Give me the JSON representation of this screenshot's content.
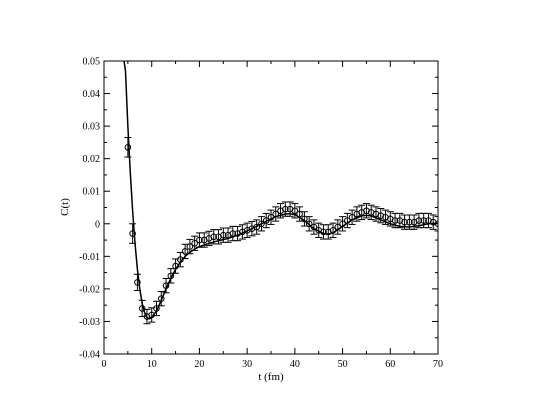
{
  "chart_data": {
    "type": "scatter",
    "title": "",
    "xlabel": "t (fm)",
    "ylabel": "C(t)",
    "xlim": [
      0,
      70
    ],
    "ylim": [
      -0.04,
      0.05
    ],
    "x_ticks": [
      0,
      10,
      20,
      30,
      40,
      50,
      60,
      70
    ],
    "x_tick_labels": [
      "0",
      "10",
      "20",
      "30",
      "40",
      "50",
      "60",
      "70"
    ],
    "y_ticks": [
      -0.04,
      -0.03,
      -0.02,
      -0.01,
      0,
      0.01,
      0.02,
      0.03,
      0.04,
      0.05
    ],
    "y_tick_labels": [
      "-0.04",
      "-0.03",
      "-0.02",
      "-0.01",
      "0",
      "0.01",
      "0.02",
      "0.03",
      "0.04",
      "0.05"
    ],
    "grid": false,
    "legend": "none",
    "colors": {
      "marker": "#000000",
      "error_bar": "#000000",
      "fit_line": "#000000"
    },
    "points": [
      {
        "x": 5.0,
        "y": 0.0235,
        "err": 0.003
      },
      {
        "x": 6.0,
        "y": -0.003,
        "err": 0.003
      },
      {
        "x": 7.0,
        "y": -0.018,
        "err": 0.0025
      },
      {
        "x": 8.0,
        "y": -0.026,
        "err": 0.0025
      },
      {
        "x": 9.0,
        "y": -0.0285,
        "err": 0.0022
      },
      {
        "x": 10.0,
        "y": -0.028,
        "err": 0.0022
      },
      {
        "x": 11.0,
        "y": -0.026,
        "err": 0.0022
      },
      {
        "x": 12.0,
        "y": -0.023,
        "err": 0.0022
      },
      {
        "x": 13.0,
        "y": -0.019,
        "err": 0.0022
      },
      {
        "x": 14.0,
        "y": -0.016,
        "err": 0.0022
      },
      {
        "x": 15.0,
        "y": -0.013,
        "err": 0.0022
      },
      {
        "x": 16.0,
        "y": -0.011,
        "err": 0.0022
      },
      {
        "x": 17.0,
        "y": -0.0085,
        "err": 0.0022
      },
      {
        "x": 18.0,
        "y": -0.007,
        "err": 0.0022
      },
      {
        "x": 19.0,
        "y": -0.006,
        "err": 0.0022
      },
      {
        "x": 20.0,
        "y": -0.005,
        "err": 0.0022
      },
      {
        "x": 21.0,
        "y": -0.005,
        "err": 0.0022
      },
      {
        "x": 22.0,
        "y": -0.0045,
        "err": 0.0022
      },
      {
        "x": 23.0,
        "y": -0.004,
        "err": 0.0022
      },
      {
        "x": 24.0,
        "y": -0.004,
        "err": 0.0022
      },
      {
        "x": 25.0,
        "y": -0.0035,
        "err": 0.0022
      },
      {
        "x": 26.0,
        "y": -0.0035,
        "err": 0.0022
      },
      {
        "x": 27.0,
        "y": -0.003,
        "err": 0.0022
      },
      {
        "x": 28.0,
        "y": -0.003,
        "err": 0.0022
      },
      {
        "x": 29.0,
        "y": -0.0025,
        "err": 0.0022
      },
      {
        "x": 30.0,
        "y": -0.002,
        "err": 0.0022
      },
      {
        "x": 31.0,
        "y": -0.0015,
        "err": 0.0022
      },
      {
        "x": 32.0,
        "y": -0.001,
        "err": 0.0022
      },
      {
        "x": 33.0,
        "y": 0.0,
        "err": 0.0022
      },
      {
        "x": 34.0,
        "y": 0.001,
        "err": 0.0022
      },
      {
        "x": 35.0,
        "y": 0.002,
        "err": 0.0022
      },
      {
        "x": 36.0,
        "y": 0.003,
        "err": 0.0022
      },
      {
        "x": 37.0,
        "y": 0.004,
        "err": 0.0022
      },
      {
        "x": 38.0,
        "y": 0.0045,
        "err": 0.0022
      },
      {
        "x": 39.0,
        "y": 0.0045,
        "err": 0.0022
      },
      {
        "x": 40.0,
        "y": 0.004,
        "err": 0.0022
      },
      {
        "x": 41.0,
        "y": 0.003,
        "err": 0.0022
      },
      {
        "x": 42.0,
        "y": 0.0015,
        "err": 0.0022
      },
      {
        "x": 43.0,
        "y": 0.0,
        "err": 0.0022
      },
      {
        "x": 44.0,
        "y": -0.001,
        "err": 0.0022
      },
      {
        "x": 45.0,
        "y": -0.002,
        "err": 0.0022
      },
      {
        "x": 46.0,
        "y": -0.0025,
        "err": 0.0022
      },
      {
        "x": 47.0,
        "y": -0.0025,
        "err": 0.0022
      },
      {
        "x": 48.0,
        "y": -0.002,
        "err": 0.0022
      },
      {
        "x": 49.0,
        "y": -0.001,
        "err": 0.0022
      },
      {
        "x": 50.0,
        "y": 0.0,
        "err": 0.0022
      },
      {
        "x": 51.0,
        "y": 0.001,
        "err": 0.0022
      },
      {
        "x": 52.0,
        "y": 0.002,
        "err": 0.0022
      },
      {
        "x": 53.0,
        "y": 0.003,
        "err": 0.0022
      },
      {
        "x": 54.0,
        "y": 0.0035,
        "err": 0.0022
      },
      {
        "x": 55.0,
        "y": 0.004,
        "err": 0.0022
      },
      {
        "x": 56.0,
        "y": 0.0035,
        "err": 0.0022
      },
      {
        "x": 57.0,
        "y": 0.003,
        "err": 0.0022
      },
      {
        "x": 58.0,
        "y": 0.0025,
        "err": 0.0022
      },
      {
        "x": 59.0,
        "y": 0.002,
        "err": 0.0022
      },
      {
        "x": 60.0,
        "y": 0.0015,
        "err": 0.0022
      },
      {
        "x": 61.0,
        "y": 0.001,
        "err": 0.0022
      },
      {
        "x": 62.0,
        "y": 0.001,
        "err": 0.0022
      },
      {
        "x": 63.0,
        "y": 0.0005,
        "err": 0.0022
      },
      {
        "x": 64.0,
        "y": 0.0005,
        "err": 0.0022
      },
      {
        "x": 65.0,
        "y": 0.0005,
        "err": 0.0022
      },
      {
        "x": 66.0,
        "y": 0.001,
        "err": 0.0022
      },
      {
        "x": 67.0,
        "y": 0.001,
        "err": 0.0022
      },
      {
        "x": 68.0,
        "y": 0.001,
        "err": 0.0022
      },
      {
        "x": 69.0,
        "y": 0.0005,
        "err": 0.0022
      },
      {
        "x": 70.0,
        "y": 0.0,
        "err": 0.0022
      }
    ],
    "fit_curve": [
      {
        "x": 4.0,
        "y": 0.052
      },
      {
        "x": 4.5,
        "y": 0.047
      },
      {
        "x": 5.0,
        "y": 0.03
      },
      {
        "x": 5.5,
        "y": 0.016
      },
      {
        "x": 6.0,
        "y": 0.004
      },
      {
        "x": 6.5,
        "y": -0.006
      },
      {
        "x": 7.0,
        "y": -0.014
      },
      {
        "x": 7.5,
        "y": -0.02
      },
      {
        "x": 8.0,
        "y": -0.0245
      },
      {
        "x": 8.5,
        "y": -0.0272
      },
      {
        "x": 9.0,
        "y": -0.0288
      },
      {
        "x": 9.5,
        "y": -0.0292
      },
      {
        "x": 10.0,
        "y": -0.0288
      },
      {
        "x": 11.0,
        "y": -0.0268
      },
      {
        "x": 12.0,
        "y": -0.0235
      },
      {
        "x": 13.0,
        "y": -0.02
      },
      {
        "x": 14.0,
        "y": -0.0168
      },
      {
        "x": 15.0,
        "y": -0.014
      },
      {
        "x": 16.0,
        "y": -0.0118
      },
      {
        "x": 17.0,
        "y": -0.01
      },
      {
        "x": 18.0,
        "y": -0.0088
      },
      {
        "x": 19.0,
        "y": -0.0078
      },
      {
        "x": 20.0,
        "y": -0.007
      },
      {
        "x": 22.0,
        "y": -0.006
      },
      {
        "x": 24.0,
        "y": -0.0052
      },
      {
        "x": 26.0,
        "y": -0.0045
      },
      {
        "x": 28.0,
        "y": -0.0035
      },
      {
        "x": 30.0,
        "y": -0.0022
      },
      {
        "x": 32.0,
        "y": -0.0008
      },
      {
        "x": 34.0,
        "y": 0.0008
      },
      {
        "x": 36.0,
        "y": 0.0022
      },
      {
        "x": 38.0,
        "y": 0.003
      },
      {
        "x": 39.0,
        "y": 0.0031
      },
      {
        "x": 40.0,
        "y": 0.0028
      },
      {
        "x": 42.0,
        "y": 0.001
      },
      {
        "x": 44.0,
        "y": -0.0015
      },
      {
        "x": 46.0,
        "y": -0.003
      },
      {
        "x": 47.0,
        "y": -0.0032
      },
      {
        "x": 48.0,
        "y": -0.0028
      },
      {
        "x": 50.0,
        "y": -0.0008
      },
      {
        "x": 52.0,
        "y": 0.0012
      },
      {
        "x": 54.0,
        "y": 0.0024
      },
      {
        "x": 55.0,
        "y": 0.0026
      },
      {
        "x": 56.0,
        "y": 0.0024
      },
      {
        "x": 58.0,
        "y": 0.0012
      },
      {
        "x": 60.0,
        "y": 0.0
      },
      {
        "x": 62.0,
        "y": -0.0008
      },
      {
        "x": 64.0,
        "y": -0.001
      },
      {
        "x": 66.0,
        "y": -0.0006
      },
      {
        "x": 68.0,
        "y": 0.0
      },
      {
        "x": 70.0,
        "y": 0.0002
      }
    ]
  }
}
